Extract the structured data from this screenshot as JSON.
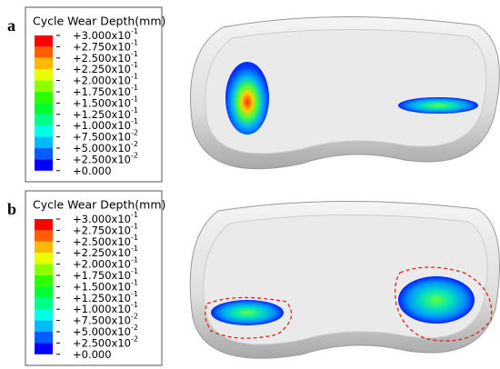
{
  "panels": [
    {
      "label": "a",
      "legend": {
        "title": "Cycle Wear Depth(mm)",
        "labels": [
          {
            "text": "+3.000x10",
            "exp": "-1"
          },
          {
            "text": "+2.750x10",
            "exp": "-1"
          },
          {
            "text": "+2.500x10",
            "exp": "-1"
          },
          {
            "text": "+2.250x10",
            "exp": "-1"
          },
          {
            "text": "+2.000x10",
            "exp": "-1"
          },
          {
            "text": "+1.750x10",
            "exp": "-1"
          },
          {
            "text": "+1.500x10",
            "exp": "-1"
          },
          {
            "text": "+1.250x10",
            "exp": "-1"
          },
          {
            "text": "+1.000x10",
            "exp": "-1"
          },
          {
            "text": "+7.500x10",
            "exp": "-2"
          },
          {
            "text": "+5.000x10",
            "exp": "-2"
          },
          {
            "text": "+2.500x10",
            "exp": "-2"
          },
          {
            "text": "+0.000"
          }
        ]
      }
    },
    {
      "label": "b",
      "legend": {
        "title": "Cycle Wear Depth(mm)",
        "labels": [
          {
            "text": "+3.000x10",
            "exp": "-1"
          },
          {
            "text": "+2.750x10",
            "exp": "-1"
          },
          {
            "text": "+2.500x10",
            "exp": "-1"
          },
          {
            "text": "+2.250x10",
            "exp": "-1"
          },
          {
            "text": "+2.000x10",
            "exp": "-1"
          },
          {
            "text": "+1.750x10",
            "exp": "-1"
          },
          {
            "text": "+1.500x10",
            "exp": "-1"
          },
          {
            "text": "+1.250x10",
            "exp": "-1"
          },
          {
            "text": "+1.000x10",
            "exp": "-1"
          },
          {
            "text": "+7.500x10",
            "exp": "-2"
          },
          {
            "text": "+5.000x10",
            "exp": "-2"
          },
          {
            "text": "+2.500x10",
            "exp": "-2"
          },
          {
            "text": "+0.000"
          }
        ]
      }
    }
  ],
  "colors": [
    "#ff0000",
    "#ff5d00",
    "#ffb900",
    "#e8ff00",
    "#8bff00",
    "#2eff00",
    "#00ff2e",
    "#00ff8b",
    "#00ffe8",
    "#00b9ff",
    "#005dff",
    "#0000ff"
  ]
}
